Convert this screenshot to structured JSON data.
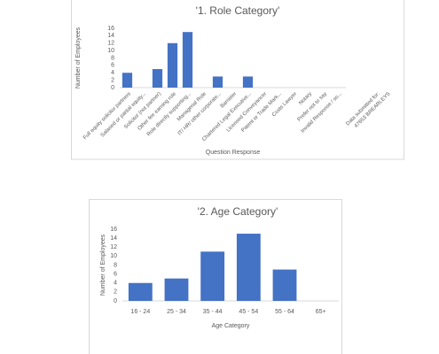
{
  "chart_data": [
    {
      "type": "bar",
      "title": "'1. Role Category'",
      "x_label": "Question Response",
      "y_label": "Number of Employees",
      "categories": [
        "Full equity solicitor partners",
        "Salaried or partial equity...",
        "Solicitor (not partner)",
        "Other fee earning role",
        "Role directly supporting...",
        "Managerial Role",
        "IT/ HR/ other corporate...",
        "Barrister",
        "Chartered Legal Executive...",
        "Licensed Conveyancer",
        "Patent or Trade Mark...",
        "Costs Lawyer",
        "Notary",
        "Prefer not to say",
        "Invalid Response / so..."
      ],
      "values": [
        4,
        0,
        5,
        12,
        15,
        0,
        3,
        0,
        3,
        0,
        0,
        0,
        0,
        0,
        0
      ],
      "annotation": [
        "Data submitted for:",
        "47653 BREARLEYS"
      ],
      "color": "#4472c4",
      "ylim": [
        0,
        16
      ],
      "yticks": [
        0,
        2,
        4,
        6,
        8,
        10,
        12,
        14,
        16
      ],
      "grid": false
    },
    {
      "type": "bar",
      "title": "'2. Age Category'",
      "x_label": "Age Category",
      "y_label": "Number of Employees",
      "categories": [
        "16 - 24",
        "25 - 34",
        "35 - 44",
        "45 - 54",
        "55 - 64",
        "65+"
      ],
      "values": [
        4,
        5,
        11,
        15,
        7,
        0
      ],
      "color": "#4472c4",
      "ylim": [
        0,
        16
      ],
      "yticks": [
        0,
        2,
        4,
        6,
        8,
        10,
        12,
        14,
        16
      ],
      "grid": false
    }
  ]
}
